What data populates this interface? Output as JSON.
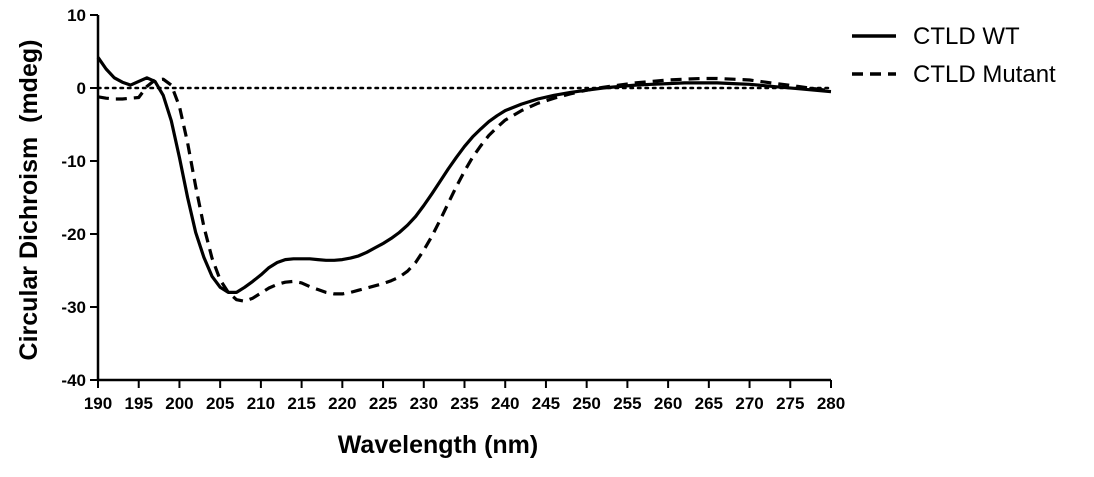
{
  "chart_data": {
    "type": "line",
    "title": "",
    "xlabel": "Wavelength (nm)",
    "ylabel": "Circular Dichroism  (mdeg)",
    "xlim": [
      190,
      280
    ],
    "ylim": [
      -40,
      10
    ],
    "xticks": [
      190,
      195,
      200,
      205,
      210,
      215,
      220,
      225,
      230,
      235,
      240,
      245,
      250,
      255,
      260,
      265,
      270,
      275,
      280
    ],
    "yticks": [
      10,
      0,
      -10,
      -20,
      -30,
      -40
    ],
    "zero_reference_line": true,
    "grid": false,
    "legend_position": "right",
    "series": [
      {
        "name": "CTLD WT",
        "style": "solid",
        "x": [
          190,
          191,
          192,
          193,
          194,
          195,
          196,
          197,
          198,
          199,
          200,
          201,
          202,
          203,
          204,
          205,
          206,
          207,
          208,
          209,
          210,
          211,
          212,
          213,
          214,
          215,
          216,
          217,
          218,
          219,
          220,
          221,
          222,
          223,
          224,
          225,
          226,
          227,
          228,
          229,
          230,
          231,
          232,
          233,
          234,
          235,
          236,
          237,
          238,
          239,
          240,
          242,
          244,
          246,
          248,
          250,
          252,
          254,
          256,
          258,
          260,
          262,
          264,
          266,
          268,
          270,
          272,
          274,
          276,
          278,
          280
        ],
        "y": [
          4.2,
          2.6,
          1.4,
          0.8,
          0.4,
          0.9,
          1.4,
          0.9,
          -1.0,
          -4.5,
          -9.5,
          -15.0,
          -19.8,
          -23.2,
          -25.8,
          -27.3,
          -28.0,
          -28.0,
          -27.3,
          -26.5,
          -25.6,
          -24.6,
          -23.9,
          -23.5,
          -23.4,
          -23.4,
          -23.4,
          -23.5,
          -23.6,
          -23.6,
          -23.5,
          -23.3,
          -23.0,
          -22.5,
          -21.9,
          -21.3,
          -20.6,
          -19.8,
          -18.8,
          -17.6,
          -16.1,
          -14.5,
          -12.8,
          -11.1,
          -9.5,
          -8.0,
          -6.7,
          -5.6,
          -4.6,
          -3.8,
          -3.1,
          -2.2,
          -1.5,
          -1.0,
          -0.6,
          -0.3,
          0.0,
          0.2,
          0.4,
          0.5,
          0.6,
          0.7,
          0.7,
          0.7,
          0.6,
          0.5,
          0.3,
          0.1,
          -0.1,
          -0.3,
          -0.5
        ]
      },
      {
        "name": "CTLD Mutant",
        "style": "dashed",
        "x": [
          190,
          191,
          192,
          193,
          194,
          195,
          196,
          197,
          198,
          199,
          200,
          201,
          202,
          203,
          204,
          205,
          206,
          207,
          208,
          209,
          210,
          211,
          212,
          213,
          214,
          215,
          216,
          217,
          218,
          219,
          220,
          221,
          222,
          223,
          224,
          225,
          226,
          227,
          228,
          229,
          230,
          231,
          232,
          233,
          234,
          235,
          236,
          237,
          238,
          239,
          240,
          242,
          244,
          246,
          248,
          250,
          252,
          254,
          256,
          258,
          260,
          262,
          264,
          266,
          268,
          270,
          272,
          274,
          276,
          278,
          280
        ],
        "y": [
          -1.2,
          -1.4,
          -1.5,
          -1.5,
          -1.4,
          -1.3,
          0.2,
          1.1,
          1.2,
          0.4,
          -2.5,
          -7.5,
          -13.5,
          -19.0,
          -23.3,
          -26.3,
          -28.0,
          -29.0,
          -29.2,
          -28.8,
          -28.1,
          -27.4,
          -26.9,
          -26.6,
          -26.5,
          -26.7,
          -27.2,
          -27.6,
          -28.0,
          -28.2,
          -28.2,
          -28.0,
          -27.7,
          -27.4,
          -27.1,
          -26.8,
          -26.4,
          -25.9,
          -25.1,
          -23.9,
          -22.2,
          -20.3,
          -18.1,
          -15.8,
          -13.5,
          -11.4,
          -9.5,
          -7.9,
          -6.5,
          -5.4,
          -4.4,
          -3.1,
          -2.1,
          -1.4,
          -0.8,
          -0.3,
          0.1,
          0.4,
          0.7,
          0.9,
          1.1,
          1.2,
          1.3,
          1.3,
          1.2,
          1.1,
          0.8,
          0.5,
          0.2,
          -0.1,
          -0.4
        ]
      }
    ]
  }
}
